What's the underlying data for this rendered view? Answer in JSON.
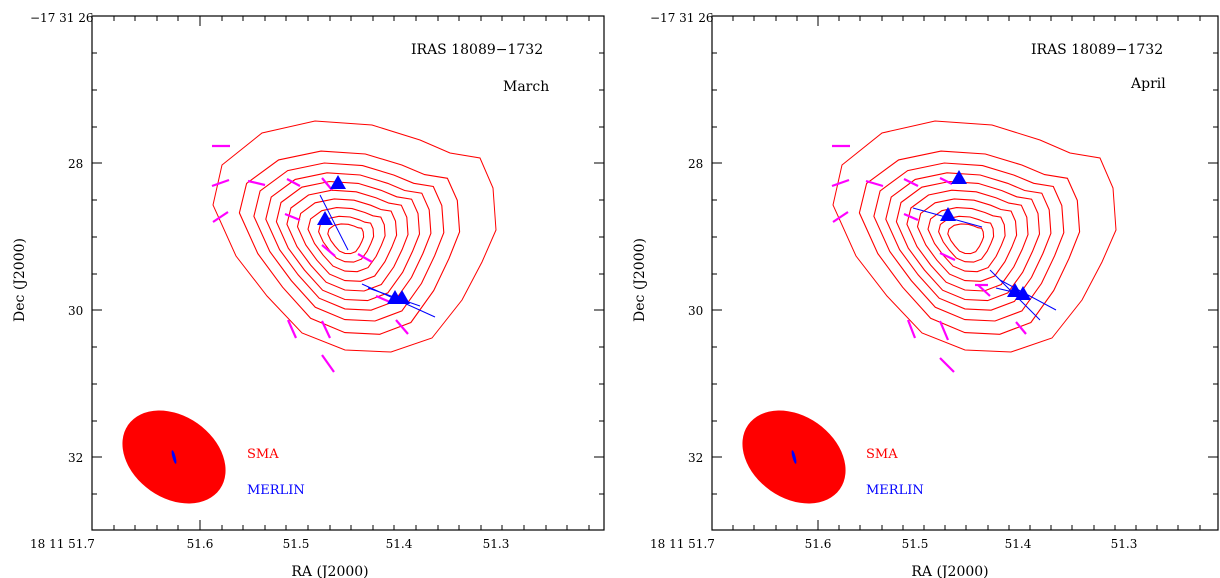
{
  "panels": [
    {
      "id": "march",
      "source_label": "IRAS 18089−1732",
      "epoch_label": "March",
      "top_left_tick": "−17 31 26",
      "left_axis_ticks": [
        "28",
        "30",
        "32"
      ],
      "bottom_axis_ticks": [
        "18 11 51.7",
        "51.6",
        "51.5",
        "51.4",
        "51.3"
      ],
      "xlabel": "RA  (J2000)",
      "ylabel": "Dec  (J2000)",
      "legend": [
        {
          "name": "SMA",
          "color": "#ff0000"
        },
        {
          "name": "MERLIN",
          "color": "#0000ff"
        }
      ]
    },
    {
      "id": "april",
      "source_label": "IRAS 18089−1732",
      "epoch_label": "April",
      "top_left_tick": "−17 31 26",
      "left_axis_ticks": [
        "28",
        "30",
        "32"
      ],
      "bottom_axis_ticks": [
        "18 11 51.7",
        "51.6",
        "51.5",
        "51.4",
        "51.3"
      ],
      "xlabel": "RA  (J2000)",
      "ylabel": "Dec  (J2000)",
      "legend": [
        {
          "name": "SMA",
          "color": "#ff0000"
        },
        {
          "name": "MERLIN",
          "color": "#0000ff"
        }
      ]
    }
  ],
  "colors": {
    "contour": "#ff0000",
    "beam_sma": "#ff0000",
    "beam_merlin": "#0000ff",
    "maser_marker": "#0000ff",
    "polarization_vector": "#ff00ff"
  }
}
